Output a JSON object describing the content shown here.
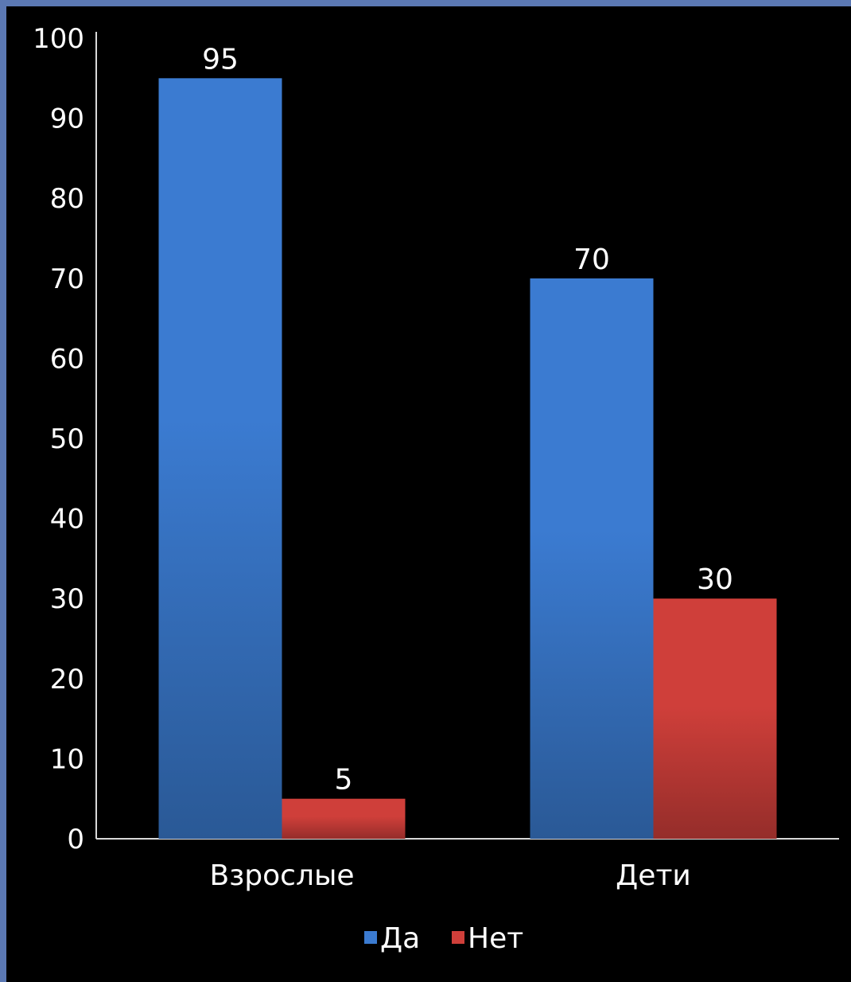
{
  "chart_data": {
    "type": "bar",
    "categories": [
      "Взрослые",
      "Дети"
    ],
    "series": [
      {
        "name": "Да",
        "values": [
          95,
          70
        ],
        "color": "#3b7bd1"
      },
      {
        "name": "Нет",
        "values": [
          5,
          30
        ],
        "color": "#cf3f3a"
      }
    ],
    "ylim": [
      0,
      100
    ],
    "yticks": [
      0,
      10,
      20,
      30,
      40,
      50,
      60,
      70,
      80,
      90,
      100
    ],
    "title": "",
    "xlabel": "",
    "ylabel": "",
    "grid": false,
    "legend_position": "bottom",
    "data_labels": true
  },
  "colors": {
    "background": "#000000",
    "frame": "#5b78b3",
    "text": "#ffffff",
    "axis": "#d9d9d9"
  }
}
